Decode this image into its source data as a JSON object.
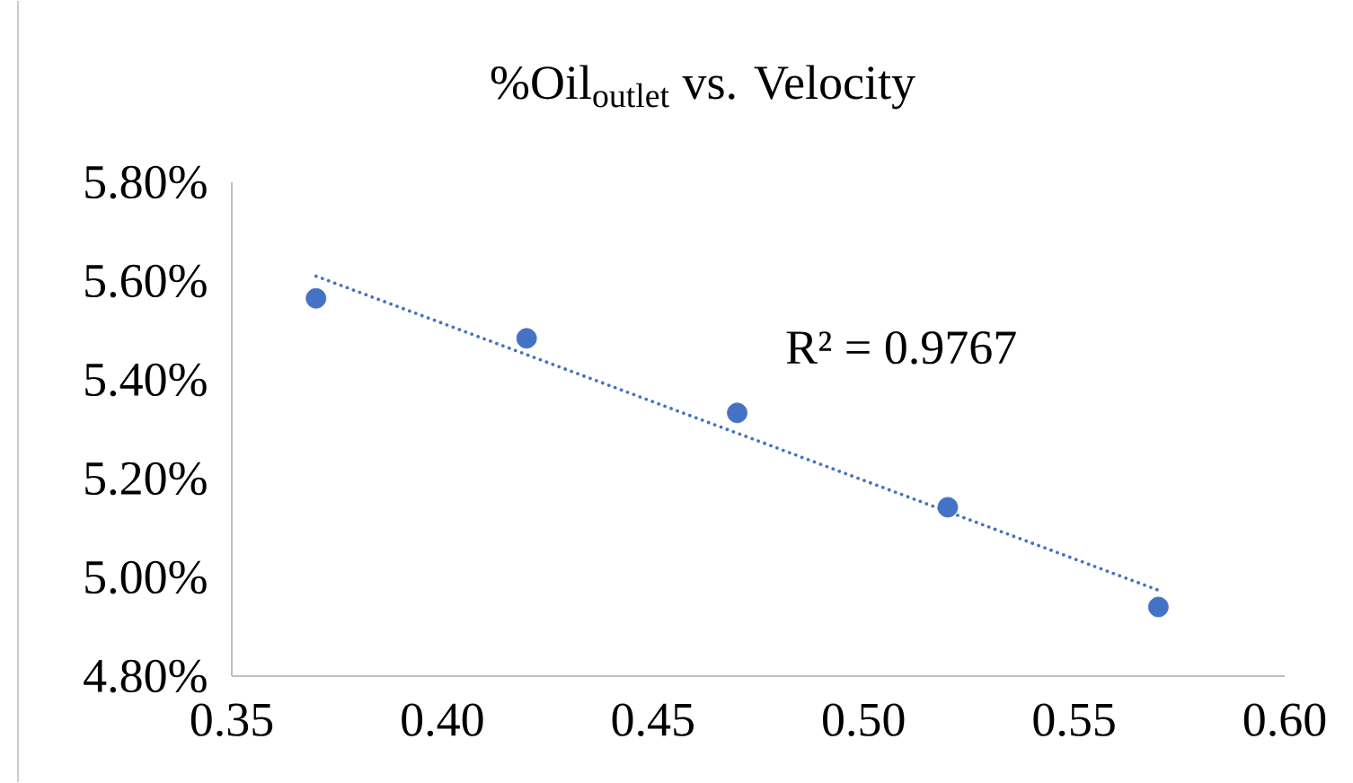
{
  "chart_data": {
    "type": "scatter",
    "title": "%Oil$_{outlet}$ vs. Velocity",
    "annotations": [
      "R² = 0.9767"
    ],
    "xlim": [
      0.35,
      0.6
    ],
    "xticks": [
      {
        "value": 0.35,
        "label": "0.35"
      },
      {
        "value": 0.4,
        "label": "0.40"
      },
      {
        "value": 0.45,
        "label": "0.45"
      },
      {
        "value": 0.5,
        "label": "0.50"
      },
      {
        "value": 0.55,
        "label": "0.55"
      },
      {
        "value": 0.6,
        "label": "0.60"
      }
    ],
    "ylim": [
      4.8,
      5.8
    ],
    "yticks": [
      {
        "value": 4.8,
        "label": "4.80%"
      },
      {
        "value": 5.0,
        "label": "5.00%"
      },
      {
        "value": 5.2,
        "label": "5.20%"
      },
      {
        "value": 5.4,
        "label": "5.40%"
      },
      {
        "value": 5.6,
        "label": "5.60%"
      },
      {
        "value": 5.8,
        "label": "5.80%"
      }
    ],
    "series": [
      {
        "color": "#4472c4",
        "marker": "circle",
        "x": [
          0.37,
          0.42,
          0.47,
          0.52,
          0.57
        ],
        "values": [
          5.565,
          5.484,
          5.333,
          5.142,
          4.94
        ]
      },
      {
        "type": "line",
        "color": "#4472c4",
        "marker": "none",
        "line_style": "dotted",
        "x": [
          0.37,
          0.57
        ],
        "values": [
          5.61,
          4.974
        ]
      }
    ]
  }
}
